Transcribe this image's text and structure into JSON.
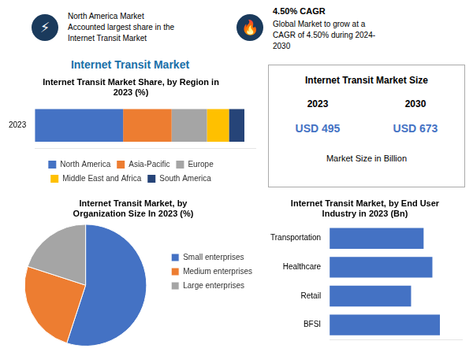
{
  "title": "Internet Transit Market",
  "annotations": [
    "⚡",
    "North America Market\nAccounted largest share in the\nInternet Transit Market",
    "🔥",
    "4.50% CAGR",
    "Global Market to grow at a\nCAGR of 4.50% during 2024-\n2030",
    "Internet Transit Market Size",
    "2023",
    "2030",
    "USD 495",
    "USD 673",
    "Market Size in Billion"
  ],
  "chart_data": [
    {
      "type": "bar",
      "title": "Internet Transit Market Share, by Region in\n2023 (%)",
      "orientation": "horizontal",
      "stacked": true,
      "categories": [
        "2023"
      ],
      "series": [
        {
          "name": "North America",
          "color": "#4472c4",
          "values": [
            0.4
          ]
        },
        {
          "name": "Asia-Pacific",
          "color": "#ed7d31",
          "values": [
            0.22
          ]
        },
        {
          "name": "Europe",
          "color": "#a5a5a5",
          "values": [
            0.16
          ]
        },
        {
          "name": "Middle East and Africa",
          "color": "#ffc000",
          "values": [
            0.1
          ]
        },
        {
          "name": "South America",
          "color": "#264478",
          "values": [
            0.07
          ]
        }
      ],
      "xlim": [
        0,
        1
      ],
      "tick_labels": "y",
      "grid": false,
      "legend": "bottom"
    },
    {
      "type": "pie",
      "title": "Internet Transit Market, by\nOrganization Size In 2023 (%)",
      "categories": [
        "Small enterprises",
        "Medium enterprises",
        "Large enterprises"
      ],
      "values": [
        0.55,
        0.25,
        0.2
      ],
      "colors": [
        "#4472c4",
        "#ed7d31",
        "#a5a5a5"
      ],
      "legend": "right"
    },
    {
      "type": "bar",
      "title": "Internet Transit Market, by End User\nIndustry in 2023 (Bn)",
      "orientation": "horizontal",
      "categories": [
        "Transportation",
        "Healthcare",
        "Retail",
        "BFSI"
      ],
      "values": [
        75,
        82,
        65,
        88
      ],
      "color": "#4472c4",
      "xlim": [
        0,
        105.6
      ],
      "tick_labels": "y",
      "grid": false
    }
  ]
}
